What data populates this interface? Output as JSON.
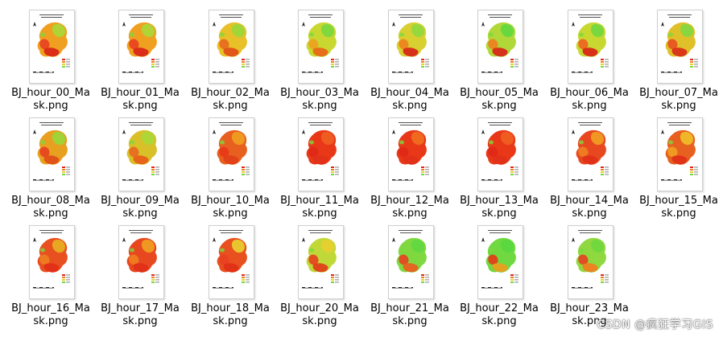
{
  "files": [
    {
      "line1": "BJ_hour_00_Ma",
      "line2": "sk.png",
      "main": "#f0a020",
      "accent": "#e84020",
      "ne": "#a8d838",
      "south": "#d82818"
    },
    {
      "line1": "BJ_hour_01_Ma",
      "line2": "sk.png",
      "main": "#f0a020",
      "accent": "#e84020",
      "ne": "#a8d838",
      "south": "#d82818"
    },
    {
      "line1": "BJ_hour_02_Ma",
      "line2": "sk.png",
      "main": "#e8c028",
      "accent": "#e86820",
      "ne": "#98d838",
      "south": "#e05018"
    },
    {
      "line1": "BJ_hour_03_Ma",
      "line2": "sk.png",
      "main": "#c8d830",
      "accent": "#f0a020",
      "ne": "#78d840",
      "south": "#e86818"
    },
    {
      "line1": "BJ_hour_04_Ma",
      "line2": "sk.png",
      "main": "#d8d030",
      "accent": "#f08020",
      "ne": "#90d840",
      "south": "#d82818"
    },
    {
      "line1": "BJ_hour_05_Ma",
      "line2": "sk.png",
      "main": "#b0d838",
      "accent": "#f08020",
      "ne": "#60d840",
      "south": "#d82818"
    },
    {
      "line1": "BJ_hour_06_Ma",
      "line2": "sk.png",
      "main": "#c8d830",
      "accent": "#f06020",
      "ne": "#70d840",
      "south": "#d82818"
    },
    {
      "line1": "BJ_hour_07_Ma",
      "line2": "sk.png",
      "main": "#e0c028",
      "accent": "#e85020",
      "ne": "#80d840",
      "south": "#d83018"
    },
    {
      "line1": "BJ_hour_08_Ma",
      "line2": "sk.png",
      "main": "#e8a020",
      "accent": "#e84020",
      "ne": "#98d838",
      "south": "#e05018"
    },
    {
      "line1": "BJ_hour_09_Ma",
      "line2": "sk.png",
      "main": "#d8c028",
      "accent": "#e86820",
      "ne": "#a8d838",
      "south": "#e86018"
    },
    {
      "line1": "BJ_hour_10_Ma",
      "line2": "sk.png",
      "main": "#e86020",
      "accent": "#e83818",
      "ne": "#f0a020",
      "south": "#e04018"
    },
    {
      "line1": "BJ_hour_11_Ma",
      "line2": "sk.png",
      "main": "#e83818",
      "accent": "#e02818",
      "ne": "#f06020",
      "south": "#e03018"
    },
    {
      "line1": "BJ_hour_12_Ma",
      "line2": "sk.png",
      "main": "#e83818",
      "accent": "#e02818",
      "ne": "#f07020",
      "south": "#e03018"
    },
    {
      "line1": "BJ_hour_13_Ma",
      "line2": "sk.png",
      "main": "#e83818",
      "accent": "#e02818",
      "ne": "#f06020",
      "south": "#e03018"
    },
    {
      "line1": "BJ_hour_14_Ma",
      "line2": "sk.png",
      "main": "#e84820",
      "accent": "#f08020",
      "ne": "#f0a020",
      "south": "#e03018"
    },
    {
      "line1": "BJ_hour_15_Ma",
      "line2": "sk.png",
      "main": "#e86020",
      "accent": "#f0a020",
      "ne": "#f0c028",
      "south": "#e03018"
    },
    {
      "line1": "BJ_hour_16_Ma",
      "line2": "sk.png",
      "main": "#e85020",
      "accent": "#f08020",
      "ne": "#e8b020",
      "south": "#e03018"
    },
    {
      "line1": "BJ_hour_17_Ma",
      "line2": "sk.png",
      "main": "#e84820",
      "accent": "#f08020",
      "ne": "#f0a020",
      "south": "#e03018"
    },
    {
      "line1": "BJ_hour_18_Ma",
      "line2": "sk.png",
      "main": "#e85020",
      "accent": "#e84020",
      "ne": "#e8d030",
      "south": "#e03018"
    },
    {
      "line1": "BJ_hour_20_Ma",
      "line2": "sk.png",
      "main": "#c0d838",
      "accent": "#e84020",
      "ne": "#e8d030",
      "south": "#e04018"
    },
    {
      "line1": "BJ_hour_21_Ma",
      "line2": "sk.png",
      "main": "#80d840",
      "accent": "#e84020",
      "ne": "#60d840",
      "south": "#e86020"
    },
    {
      "line1": "BJ_hour_22_Ma",
      "line2": "sk.png",
      "main": "#70d840",
      "accent": "#e83818",
      "ne": "#58d840",
      "south": "#e8a020"
    },
    {
      "line1": "BJ_hour_23_Ma",
      "line2": "sk.png",
      "main": "#90d840",
      "accent": "#e84020",
      "ne": "#70d840",
      "south": "#f08020"
    }
  ],
  "watermark": "CSDN @疯狂学习GIS"
}
